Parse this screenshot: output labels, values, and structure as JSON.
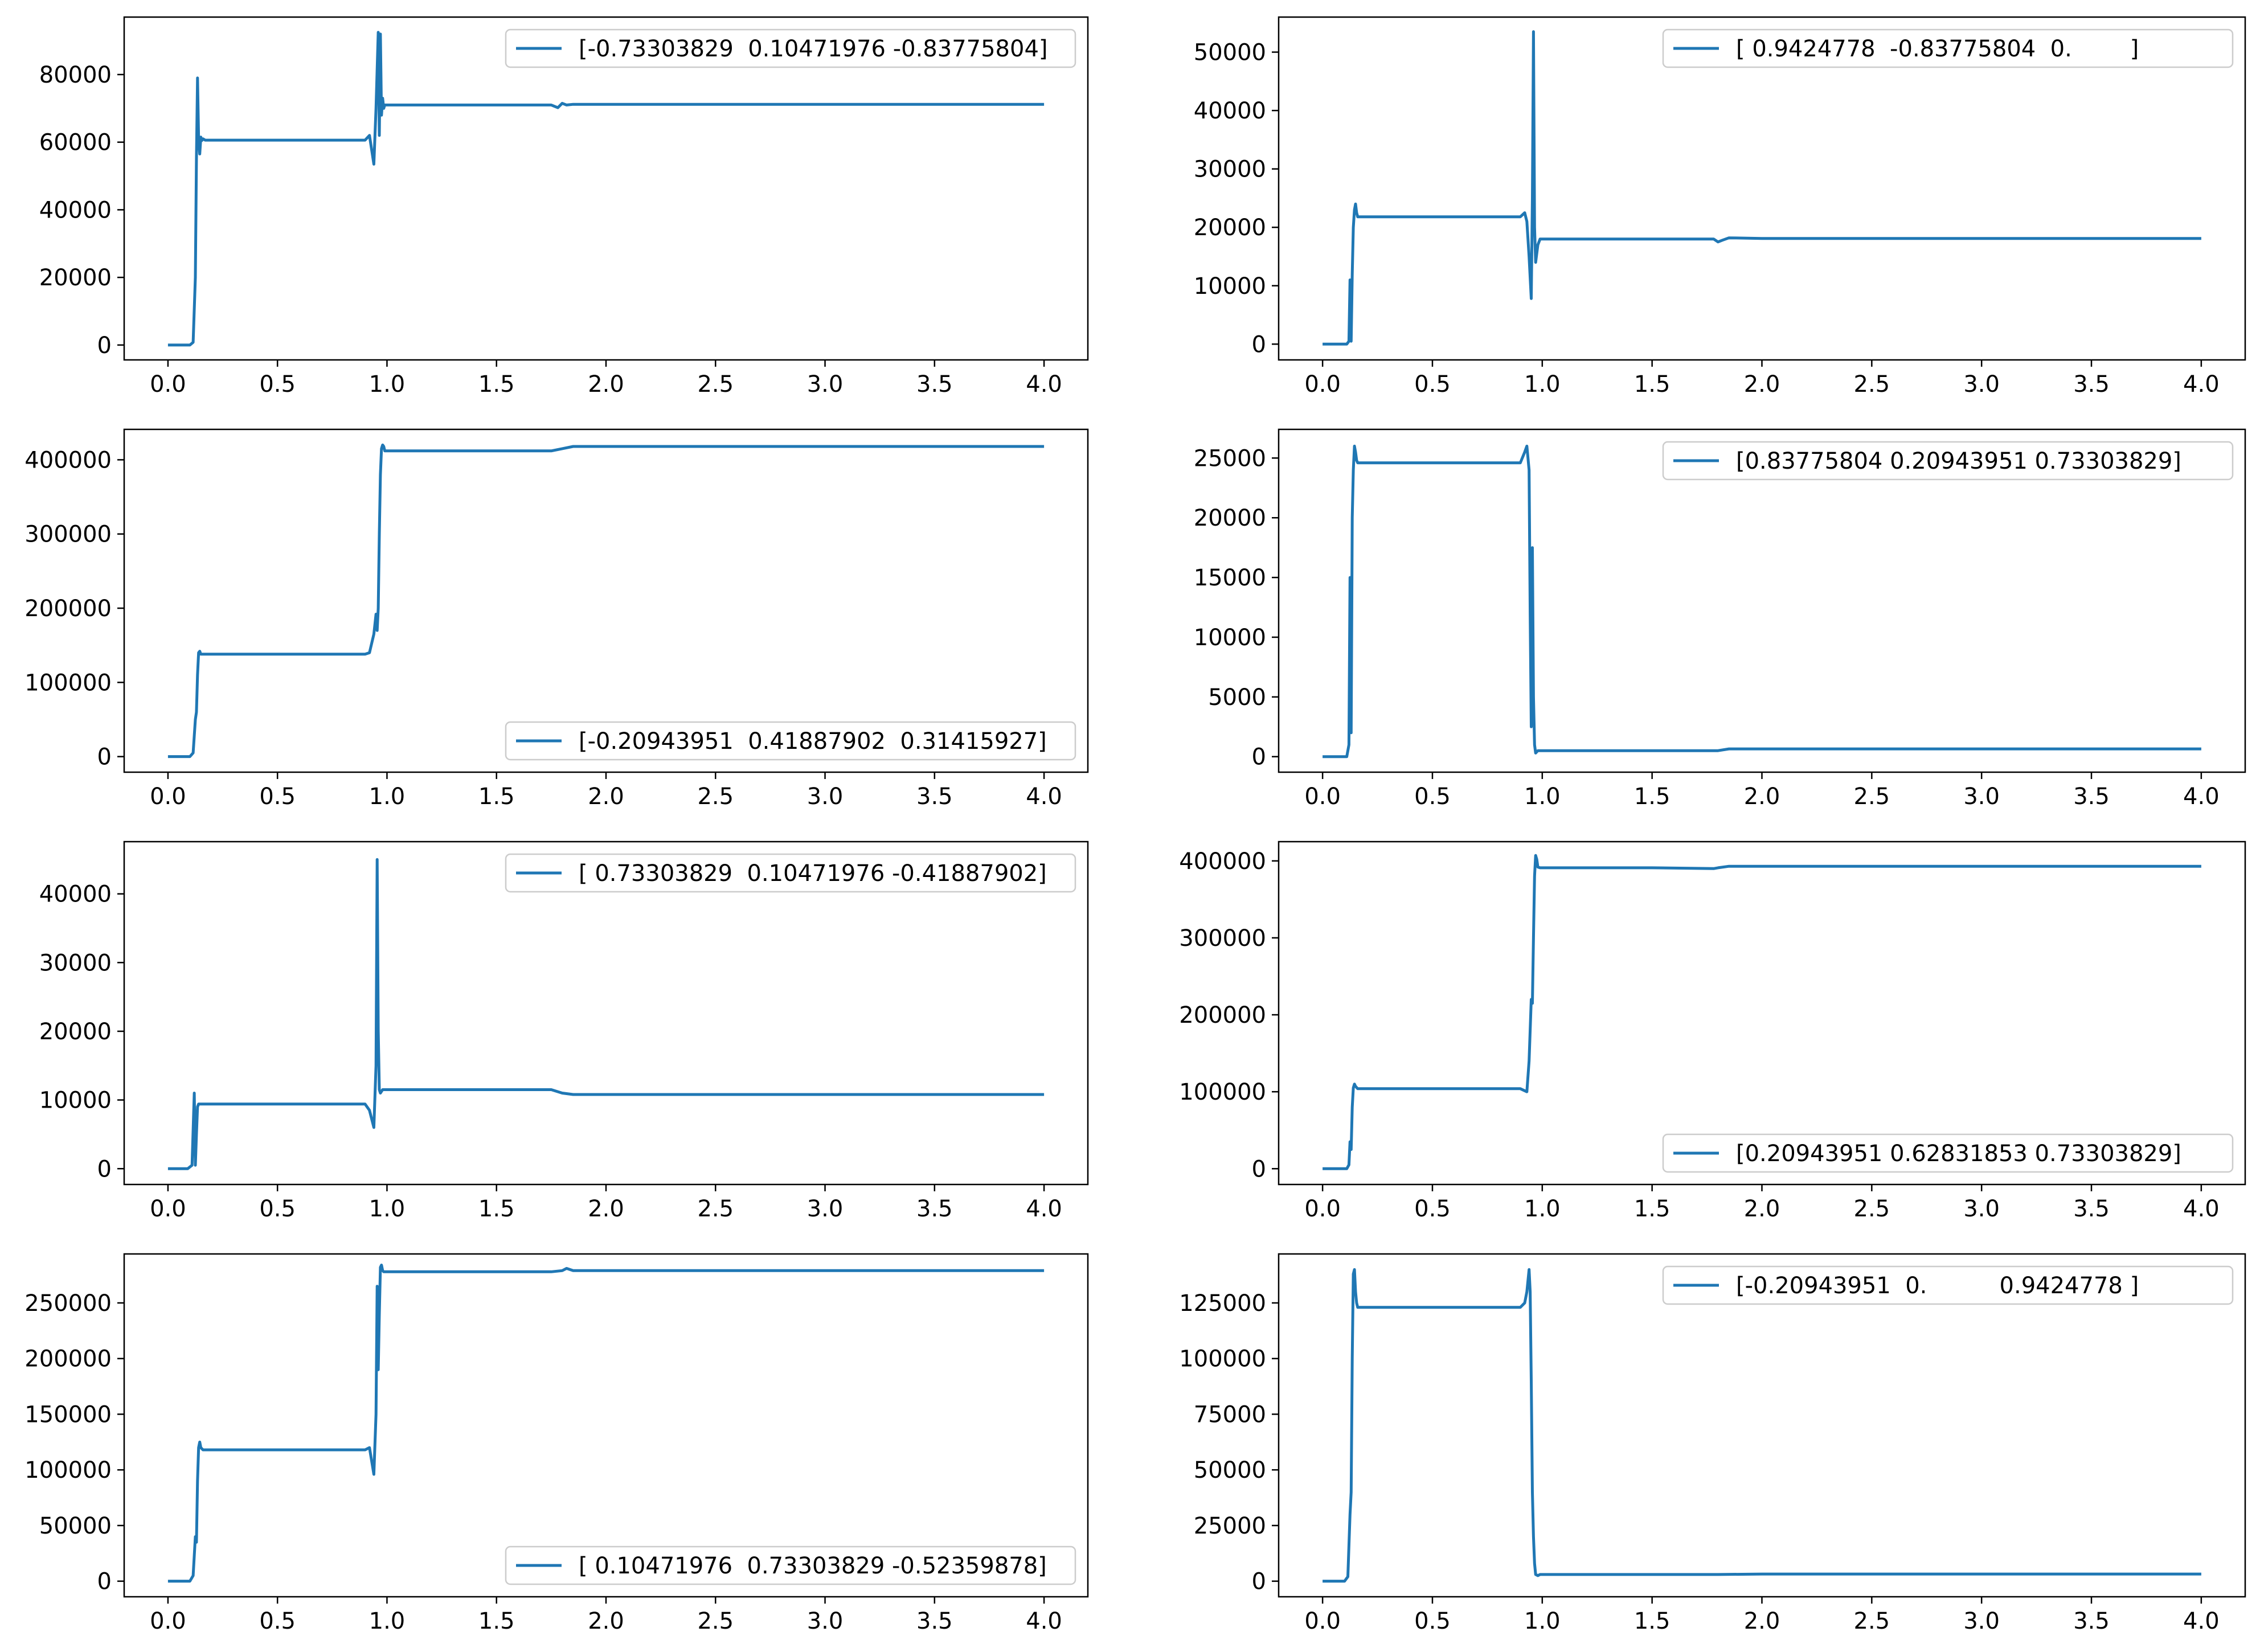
{
  "figure": {
    "line_color": "#1f77b4",
    "background": "#ffffff",
    "axes_color": "#000000",
    "legend_border": "#cccccc"
  },
  "chart_data": [
    {
      "type": "line",
      "legend": "[-0.73303829  0.10471976 -0.83775804]",
      "legend_loc": "upper right",
      "xlim": [
        -0.2,
        4.2
      ],
      "ylim": [
        -4400,
        97000
      ],
      "xticks": [
        "0.0",
        "0.5",
        "1.0",
        "1.5",
        "2.0",
        "2.5",
        "3.0",
        "3.5",
        "4.0"
      ],
      "yticks": [
        "0",
        "20000",
        "40000",
        "60000",
        "80000"
      ],
      "series": [
        {
          "name": "[-0.73303829  0.10471976 -0.83775804]",
          "x": [
            0,
            0.1,
            0.115,
            0.125,
            0.13,
            0.135,
            0.14,
            0.145,
            0.15,
            0.155,
            0.16,
            0.17,
            0.2,
            0.5,
            0.9,
            0.92,
            0.94,
            0.95,
            0.96,
            0.965,
            0.97,
            0.975,
            0.98,
            0.985,
            0.99,
            1.0,
            1.05,
            1.5,
            1.75,
            1.78,
            1.8,
            1.82,
            1.85,
            2.0,
            3.0,
            4.0
          ],
          "y": [
            0,
            0,
            800,
            20000,
            55000,
            79000,
            61000,
            56500,
            61500,
            60500,
            61000,
            60600,
            60600,
            60600,
            60600,
            62000,
            53500,
            70000,
            92500,
            62000,
            92000,
            68000,
            73000,
            70000,
            71000,
            71000,
            71000,
            71000,
            71000,
            70200,
            71500,
            71000,
            71200,
            71200,
            71200,
            71200
          ]
        }
      ]
    },
    {
      "type": "line",
      "legend": "[ 0.9424778  -0.83775804  0.        ]",
      "legend_loc": "upper right",
      "xlim": [
        -0.2,
        4.2
      ],
      "ylim": [
        -2700,
        56000
      ],
      "xticks": [
        "0.0",
        "0.5",
        "1.0",
        "1.5",
        "2.0",
        "2.5",
        "3.0",
        "3.5",
        "4.0"
      ],
      "yticks": [
        "0",
        "10000",
        "20000",
        "30000",
        "40000",
        "50000"
      ],
      "series": [
        {
          "name": "[ 0.9424778  -0.83775804  0.        ]",
          "x": [
            0,
            0.11,
            0.12,
            0.125,
            0.13,
            0.135,
            0.14,
            0.145,
            0.15,
            0.155,
            0.16,
            0.17,
            0.18,
            0.5,
            0.9,
            0.92,
            0.93,
            0.94,
            0.95,
            0.955,
            0.96,
            0.965,
            0.97,
            0.98,
            0.99,
            1.0,
            1.05,
            1.5,
            1.78,
            1.8,
            1.82,
            1.85,
            2.0,
            3.0,
            4.0
          ],
          "y": [
            0,
            0,
            500,
            11000,
            500,
            12000,
            20000,
            23000,
            24000,
            22500,
            21800,
            21800,
            21800,
            21800,
            21800,
            22500,
            21000,
            15000,
            7800,
            25000,
            53500,
            20000,
            14000,
            17000,
            18000,
            18000,
            18000,
            18000,
            18000,
            17500,
            17800,
            18200,
            18100,
            18100,
            18100
          ]
        }
      ]
    },
    {
      "type": "line",
      "legend": "[-0.20943951  0.41887902  0.31415927]",
      "legend_loc": "lower right",
      "xlim": [
        -0.2,
        4.2
      ],
      "ylim": [
        -21000,
        441000
      ],
      "xticks": [
        "0.0",
        "0.5",
        "1.0",
        "1.5",
        "2.0",
        "2.5",
        "3.0",
        "3.5",
        "4.0"
      ],
      "yticks": [
        "0",
        "100000",
        "200000",
        "300000",
        "400000"
      ],
      "series": [
        {
          "name": "[-0.20943951  0.41887902  0.31415927]",
          "x": [
            0,
            0.1,
            0.115,
            0.125,
            0.13,
            0.135,
            0.14,
            0.145,
            0.15,
            0.16,
            0.18,
            0.5,
            0.9,
            0.92,
            0.94,
            0.95,
            0.955,
            0.96,
            0.965,
            0.97,
            0.975,
            0.98,
            0.985,
            0.99,
            1.0,
            1.05,
            1.5,
            1.75,
            1.8,
            1.85,
            2.0,
            3.0,
            4.0
          ],
          "y": [
            0,
            0,
            5000,
            50000,
            60000,
            110000,
            140000,
            142000,
            138000,
            138000,
            138000,
            138000,
            138000,
            140000,
            165000,
            192000,
            170000,
            200000,
            300000,
            380000,
            415000,
            420000,
            418000,
            412000,
            412000,
            412000,
            412000,
            412000,
            415000,
            418000,
            418000,
            418000,
            418000
          ]
        }
      ]
    },
    {
      "type": "line",
      "legend": "[0.83775804 0.20943951 0.73303829]",
      "legend_loc": "upper right",
      "xlim": [
        -0.2,
        4.2
      ],
      "ylim": [
        -1300,
        27400
      ],
      "xticks": [
        "0.0",
        "0.5",
        "1.0",
        "1.5",
        "2.0",
        "2.5",
        "3.0",
        "3.5",
        "4.0"
      ],
      "yticks": [
        "0",
        "5000",
        "10000",
        "15000",
        "20000",
        "25000"
      ],
      "series": [
        {
          "name": "[0.83775804 0.20943951 0.73303829]",
          "x": [
            0,
            0.11,
            0.12,
            0.125,
            0.13,
            0.135,
            0.14,
            0.145,
            0.15,
            0.155,
            0.16,
            0.17,
            0.2,
            0.5,
            0.9,
            0.92,
            0.93,
            0.94,
            0.945,
            0.95,
            0.955,
            0.96,
            0.965,
            0.97,
            0.98,
            0.99,
            1.0,
            1.05,
            1.5,
            1.8,
            1.85,
            2.0,
            3.0,
            4.0
          ],
          "y": [
            0,
            0,
            1000,
            15000,
            2000,
            20000,
            24000,
            26000,
            25500,
            24800,
            24600,
            24600,
            24600,
            24600,
            24600,
            25500,
            26000,
            24000,
            12000,
            2500,
            17500,
            5000,
            1000,
            300,
            500,
            500,
            500,
            500,
            500,
            500,
            650,
            650,
            650,
            650
          ]
        }
      ]
    },
    {
      "type": "line",
      "legend": "[ 0.73303829  0.10471976 -0.41887902]",
      "legend_loc": "upper right",
      "xlim": [
        -0.2,
        4.2
      ],
      "ylim": [
        -2300,
        47600
      ],
      "xticks": [
        "0.0",
        "0.5",
        "1.0",
        "1.5",
        "2.0",
        "2.5",
        "3.0",
        "3.5",
        "4.0"
      ],
      "yticks": [
        "0",
        "10000",
        "20000",
        "30000",
        "40000"
      ],
      "series": [
        {
          "name": "[ 0.73303829  0.10471976 -0.41887902]",
          "x": [
            0,
            0.09,
            0.11,
            0.12,
            0.125,
            0.13,
            0.135,
            0.14,
            0.15,
            0.16,
            0.18,
            0.5,
            0.9,
            0.92,
            0.94,
            0.95,
            0.955,
            0.96,
            0.965,
            0.97,
            0.98,
            0.99,
            1.0,
            1.05,
            1.5,
            1.75,
            1.8,
            1.85,
            2.0,
            3.0,
            4.0
          ],
          "y": [
            0,
            0,
            500,
            11000,
            500,
            5000,
            9000,
            9400,
            9400,
            9400,
            9400,
            9400,
            9400,
            8500,
            6000,
            15000,
            45000,
            20000,
            11500,
            11000,
            11500,
            11500,
            11500,
            11500,
            11500,
            11500,
            11000,
            10800,
            10800,
            10800,
            10800
          ]
        }
      ]
    },
    {
      "type": "line",
      "legend": "[0.20943951 0.62831853 0.73303829]",
      "legend_loc": "lower right",
      "xlim": [
        -0.2,
        4.2
      ],
      "ylim": [
        -20500,
        425000
      ],
      "xticks": [
        "0.0",
        "0.5",
        "1.0",
        "1.5",
        "2.0",
        "2.5",
        "3.0",
        "3.5",
        "4.0"
      ],
      "yticks": [
        "0",
        "100000",
        "200000",
        "300000",
        "400000"
      ],
      "series": [
        {
          "name": "[0.20943951 0.62831853 0.73303829]",
          "x": [
            0,
            0.11,
            0.12,
            0.125,
            0.13,
            0.135,
            0.14,
            0.145,
            0.15,
            0.16,
            0.18,
            0.5,
            0.9,
            0.93,
            0.94,
            0.95,
            0.955,
            0.96,
            0.965,
            0.97,
            0.975,
            0.98,
            0.99,
            1.0,
            1.05,
            1.5,
            1.78,
            1.8,
            1.85,
            2.0,
            3.0,
            4.0
          ],
          "y": [
            0,
            0,
            5000,
            35000,
            25000,
            80000,
            105000,
            110000,
            107000,
            104000,
            104000,
            104000,
            104000,
            100000,
            140000,
            220000,
            215000,
            300000,
            380000,
            407000,
            402000,
            392000,
            391000,
            391000,
            391000,
            391000,
            390000,
            391000,
            393000,
            393000,
            393000,
            393000
          ]
        }
      ]
    },
    {
      "type": "line",
      "legend": "[ 0.10471976  0.73303829 -0.52359878]",
      "legend_loc": "lower right",
      "xlim": [
        -0.2,
        4.2
      ],
      "ylim": [
        -14000,
        294000
      ],
      "xticks": [
        "0.0",
        "0.5",
        "1.0",
        "1.5",
        "2.0",
        "2.5",
        "3.0",
        "3.5",
        "4.0"
      ],
      "yticks": [
        "0",
        "50000",
        "100000",
        "150000",
        "200000",
        "250000"
      ],
      "series": [
        {
          "name": "[ 0.10471976  0.73303829 -0.52359878]",
          "x": [
            0,
            0.1,
            0.115,
            0.125,
            0.13,
            0.135,
            0.14,
            0.145,
            0.15,
            0.16,
            0.18,
            0.5,
            0.9,
            0.92,
            0.94,
            0.95,
            0.955,
            0.96,
            0.965,
            0.97,
            0.975,
            0.98,
            0.985,
            0.99,
            1.0,
            1.05,
            1.5,
            1.75,
            1.8,
            1.82,
            1.85,
            2.0,
            3.0,
            4.0
          ],
          "y": [
            0,
            0,
            5000,
            40000,
            35000,
            90000,
            120000,
            125000,
            120000,
            118000,
            118000,
            118000,
            118000,
            120000,
            96000,
            150000,
            265000,
            190000,
            240000,
            282000,
            284000,
            279000,
            278000,
            278000,
            278000,
            278000,
            278000,
            278000,
            279000,
            281000,
            279000,
            279000,
            279000,
            279000
          ]
        }
      ]
    },
    {
      "type": "line",
      "legend": "[-0.20943951  0.          0.9424778 ]",
      "legend_loc": "upper right",
      "xlim": [
        -0.2,
        4.2
      ],
      "ylim": [
        -7000,
        147000
      ],
      "xticks": [
        "0.0",
        "0.5",
        "1.0",
        "1.5",
        "2.0",
        "2.5",
        "3.0",
        "3.5",
        "4.0"
      ],
      "yticks": [
        "0",
        "25000",
        "50000",
        "75000",
        "100000",
        "125000"
      ],
      "series": [
        {
          "name": "[-0.20943951  0.          0.9424778 ]",
          "x": [
            0,
            0.1,
            0.115,
            0.125,
            0.13,
            0.135,
            0.14,
            0.145,
            0.15,
            0.155,
            0.16,
            0.17,
            0.2,
            0.5,
            0.9,
            0.92,
            0.93,
            0.94,
            0.945,
            0.95,
            0.955,
            0.96,
            0.965,
            0.97,
            0.98,
            0.99,
            1.0,
            1.05,
            1.5,
            1.8,
            2.0,
            3.0,
            4.0
          ],
          "y": [
            0,
            0,
            2000,
            30000,
            40000,
            100000,
            138000,
            140000,
            130000,
            125000,
            123000,
            123000,
            123000,
            123000,
            123000,
            125000,
            130000,
            140000,
            130000,
            90000,
            40000,
            20000,
            8000,
            3000,
            2500,
            3000,
            3000,
            3000,
            3000,
            3000,
            3200,
            3200,
            3200
          ]
        }
      ]
    }
  ]
}
